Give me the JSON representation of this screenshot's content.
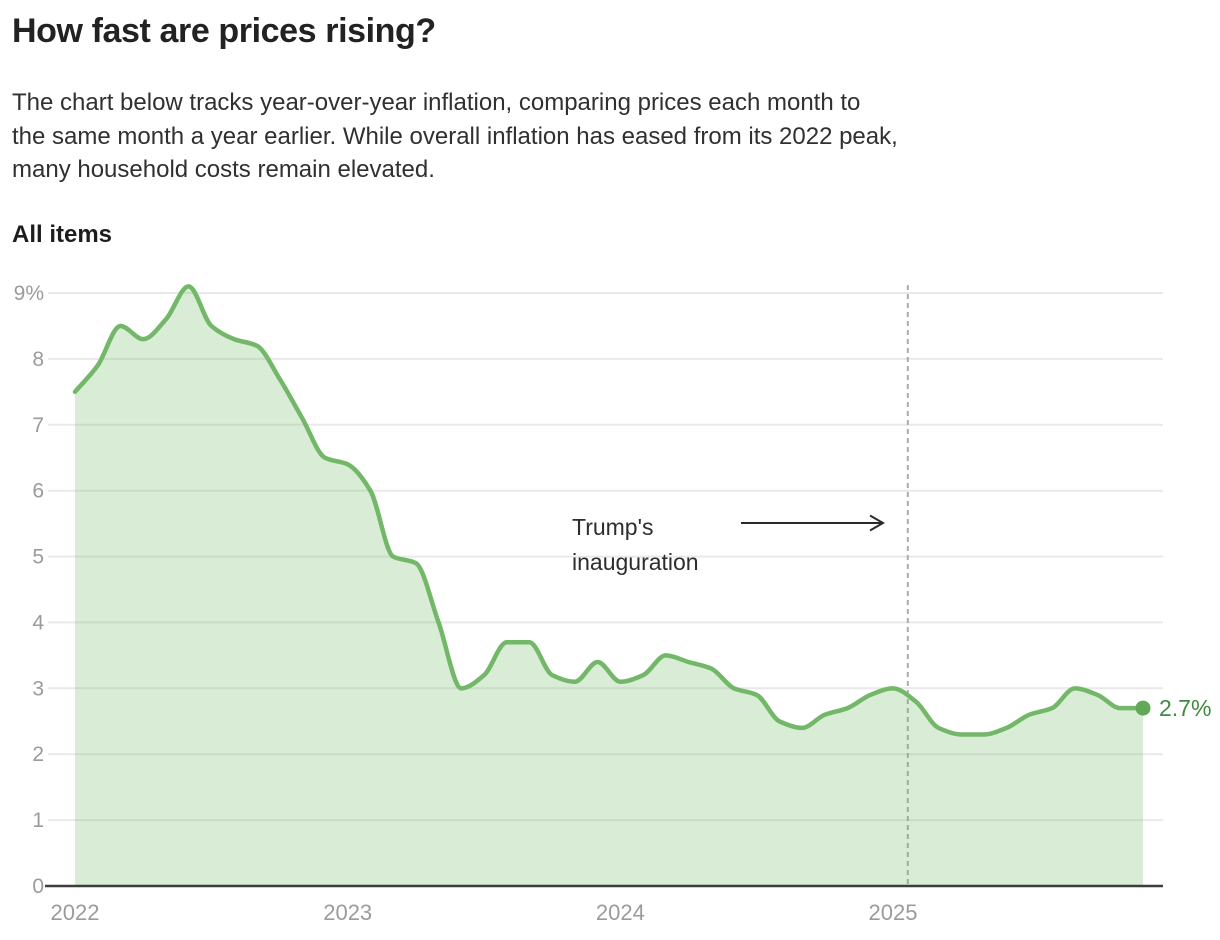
{
  "header": {
    "title": "How fast are prices rising?",
    "description_lines": [
      "The chart below tracks year-over-year inflation, comparing prices each month to",
      "the same month a year earlier. While overall inflation has eased from its 2022 peak,",
      "many household costs remain elevated."
    ]
  },
  "chart_data": {
    "type": "area",
    "series_label": "All items",
    "unit": "percent, year-over-year",
    "frequency": "monthly",
    "start_month": "2022-01",
    "end_month": "2025-12",
    "values": [
      7.5,
      7.9,
      8.5,
      8.3,
      8.6,
      9.1,
      8.5,
      8.3,
      8.2,
      7.7,
      7.1,
      6.5,
      6.4,
      6.0,
      5.0,
      4.9,
      4.0,
      3.0,
      3.2,
      3.7,
      3.7,
      3.2,
      3.1,
      3.4,
      3.1,
      3.2,
      3.5,
      3.4,
      3.3,
      3.0,
      2.9,
      2.5,
      2.4,
      2.6,
      2.7,
      2.9,
      3.0,
      2.8,
      2.4,
      2.3,
      2.3,
      2.4,
      2.6,
      2.7,
      3.0,
      2.9,
      2.7,
      2.7
    ],
    "ylim": [
      0,
      9
    ],
    "y_tick_labels": [
      "0",
      "1",
      "2",
      "3",
      "4",
      "5",
      "6",
      "7",
      "8",
      "9%"
    ],
    "x_tick_month_indices": [
      0,
      12,
      24,
      36
    ],
    "x_tick_labels": [
      "2022",
      "2023",
      "2024",
      "2025"
    ],
    "grid": "horizontal",
    "legend": "none",
    "annotation": {
      "lines": [
        "Trump's",
        "inauguration"
      ],
      "event_month_index": 36.65
    },
    "latest_value_label": "2.7%",
    "colors": {
      "line": "#73b768",
      "fill": "rgba(115,183,104,0.27)",
      "dot": "#60aa55",
      "latest_label": "#3e8a40",
      "gridline": "#e9e9e9",
      "axis": "#3d3d3d",
      "tick_text": "#9b9b9b",
      "dashed_line": "#ababab"
    }
  }
}
